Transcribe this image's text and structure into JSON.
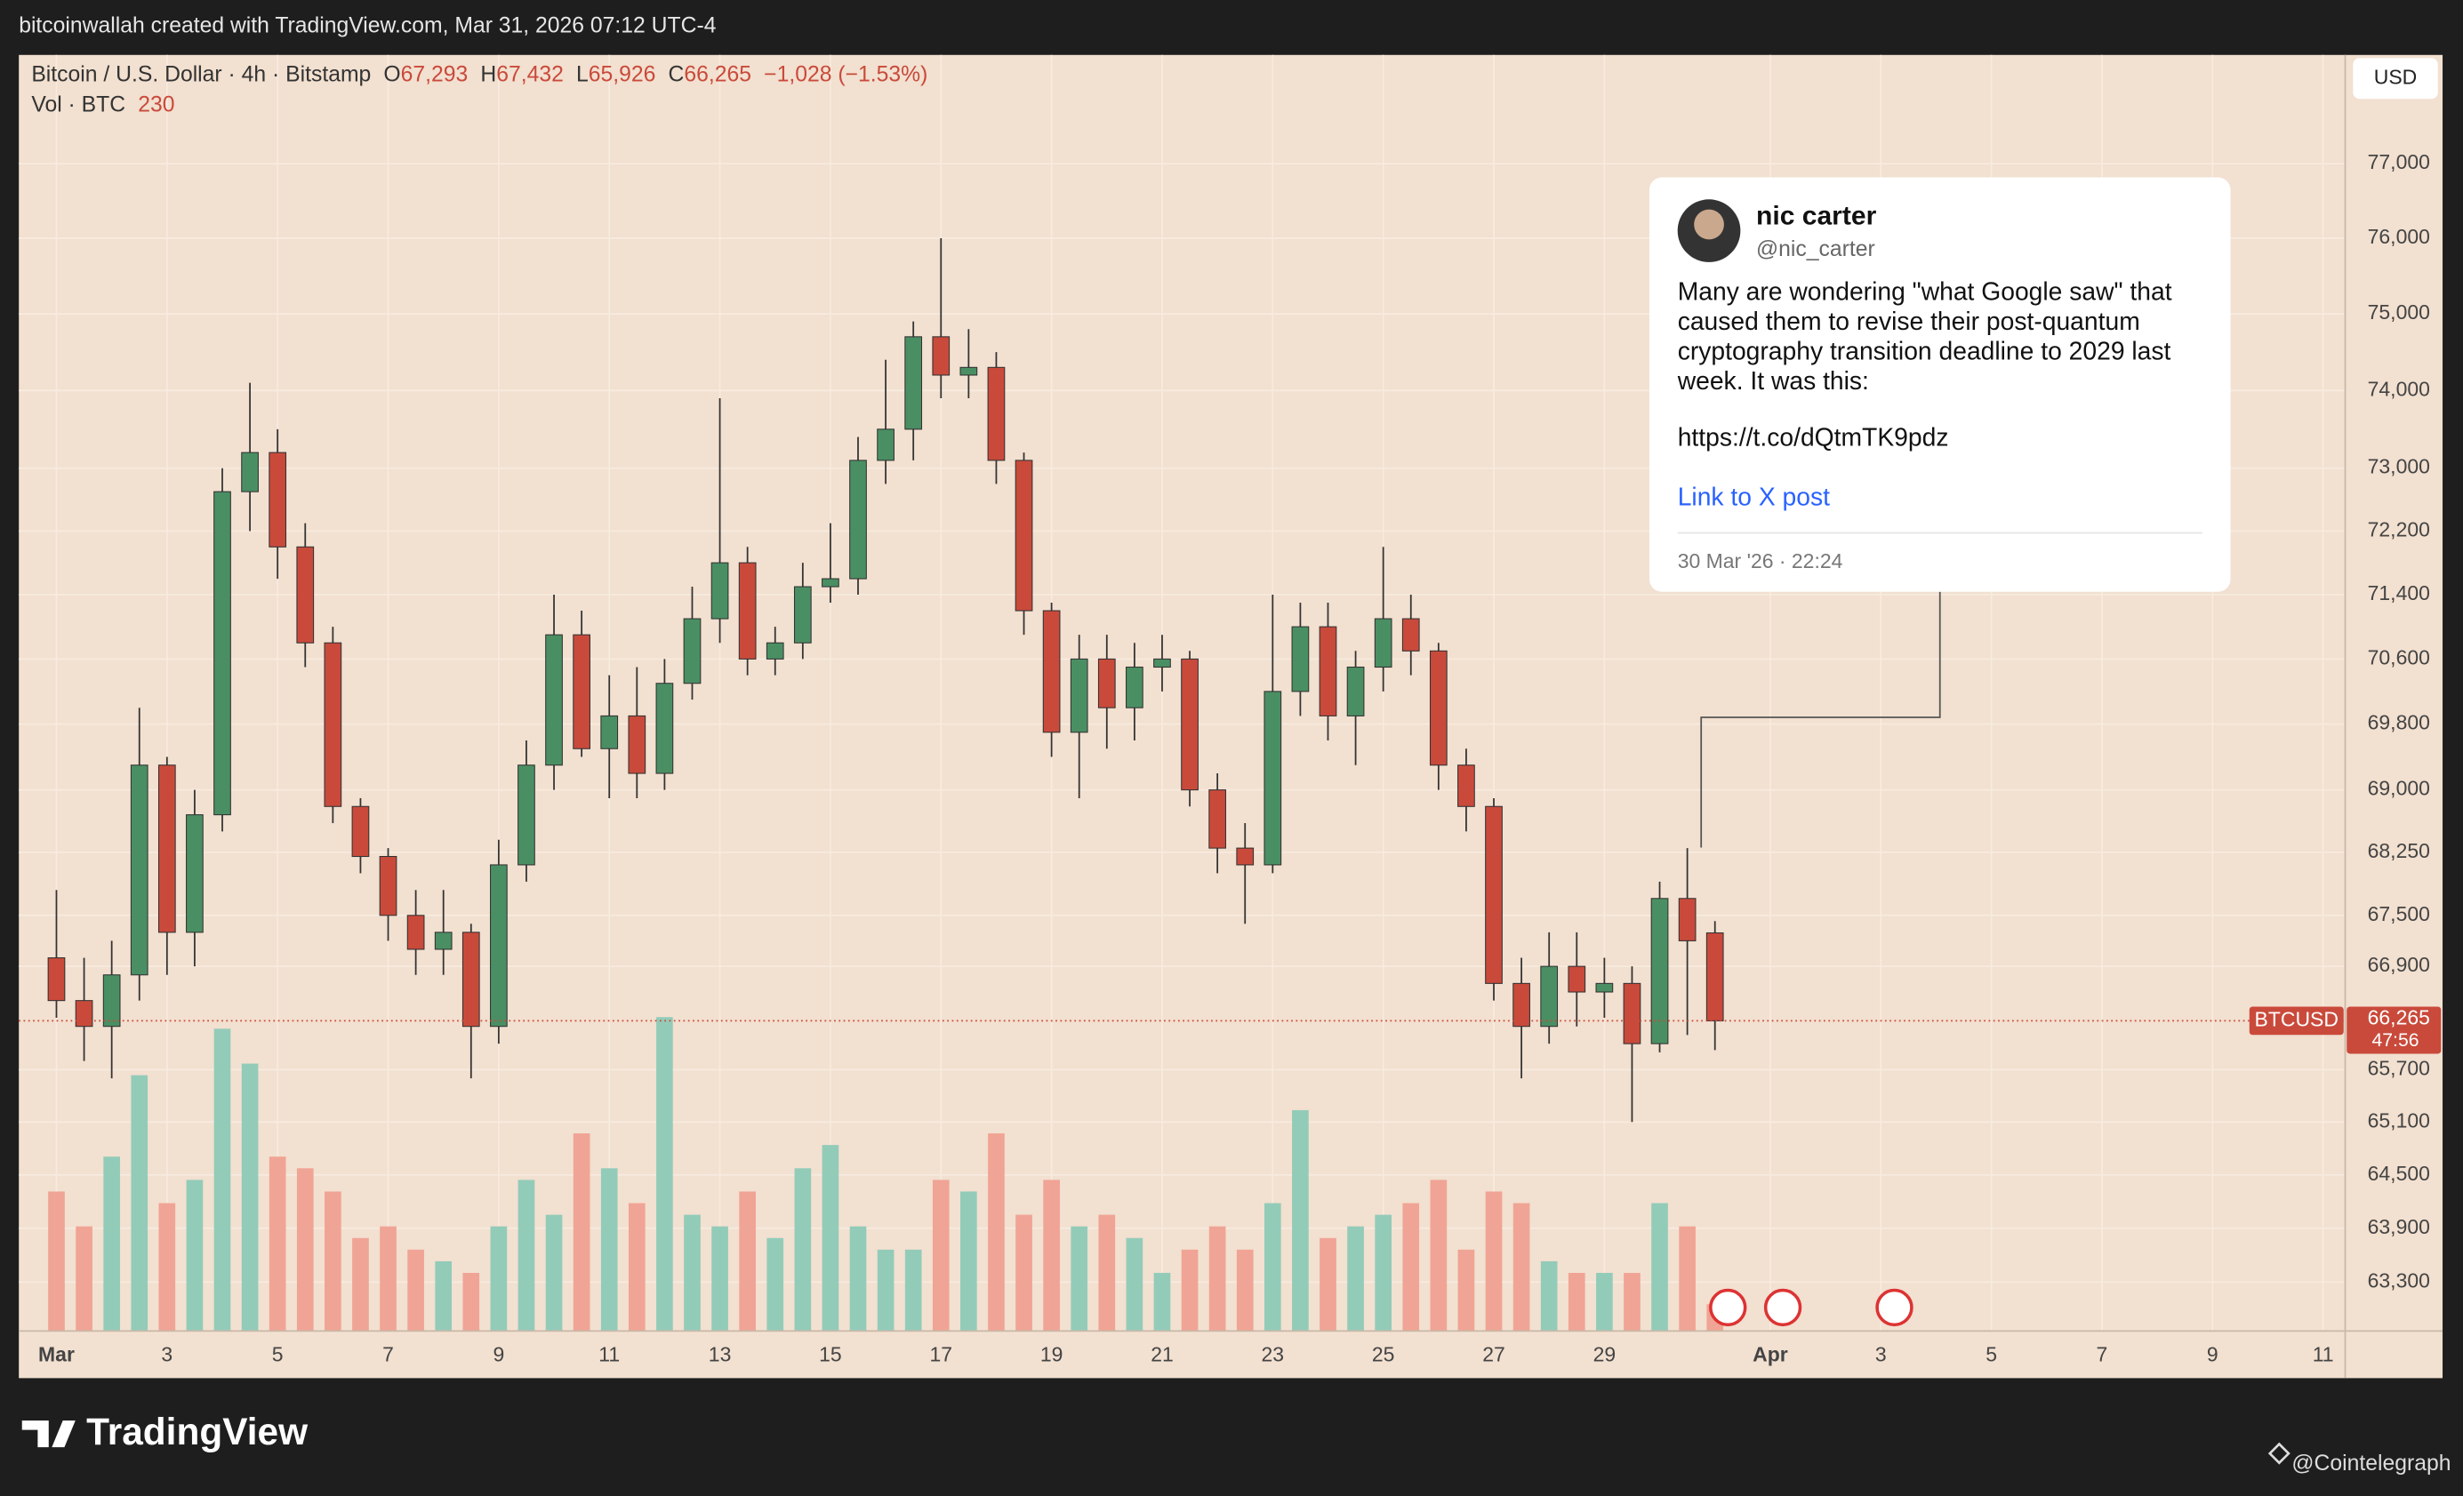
{
  "header": {
    "text": "bitcoinwallah created with TradingView.com, Mar 31, 2026 07:12 UTC-4"
  },
  "chart_data": {
    "type": "candlestick",
    "title": "Bitcoin / U.S. Dollar · 4h · Bitstamp",
    "legend": [
      {
        "key": "O",
        "value": 67293,
        "label": "67,293"
      },
      {
        "key": "H",
        "value": 67432,
        "label": "67,432"
      },
      {
        "key": "L",
        "value": 65926,
        "label": "65,926"
      },
      {
        "key": "C",
        "value": 66265,
        "label": "66,265"
      }
    ],
    "change": "−1,028 (−1.53%)",
    "volume_title": "Vol · BTC",
    "volume_last": 230,
    "currency": "USD",
    "up_color": "#4a8f63",
    "down_color": "#c94a3b",
    "volume_up_color": "#93cbb9",
    "volume_down_color": "#f0a495",
    "grid": true,
    "yscale": "log",
    "ylim": [
      62760,
      78480
    ],
    "yticks": [
      {
        "value": 77000,
        "label": "77,000"
      },
      {
        "value": 76000,
        "label": "76,000"
      },
      {
        "value": 75000,
        "label": "75,000"
      },
      {
        "value": 74000,
        "label": "74,000"
      },
      {
        "value": 73000,
        "label": "73,000"
      },
      {
        "value": 72200,
        "label": "72,200"
      },
      {
        "value": 71400,
        "label": "71,400"
      },
      {
        "value": 70600,
        "label": "70,600"
      },
      {
        "value": 69800,
        "label": "69,800"
      },
      {
        "value": 69000,
        "label": "69,000"
      },
      {
        "value": 68250,
        "label": "68,250"
      },
      {
        "value": 67500,
        "label": "67,500"
      },
      {
        "value": 66900,
        "label": "66,900"
      },
      {
        "value": 65700,
        "label": "65,700"
      },
      {
        "value": 65100,
        "label": "65,100"
      },
      {
        "value": 64500,
        "label": "64,500"
      },
      {
        "value": 63900,
        "label": "63,900"
      },
      {
        "value": 63300,
        "label": "63,300"
      }
    ],
    "xlim": [
      0.32,
      42.4
    ],
    "xticks": [
      {
        "value": 1,
        "label": "Mar"
      },
      3,
      5,
      7,
      9,
      11,
      13,
      15,
      17,
      19,
      21,
      23,
      25,
      27,
      29,
      {
        "value": 32,
        "label": "Apr"
      },
      {
        "value": 34,
        "label": "3"
      },
      {
        "value": 36,
        "label": "5"
      },
      {
        "value": 38,
        "label": "7"
      },
      {
        "value": 40,
        "label": "9"
      },
      {
        "value": 42,
        "label": "11"
      }
    ],
    "price_line": {
      "symbol": "BTCUSD",
      "value": 66265,
      "label": "66,265",
      "countdown": "47:56"
    },
    "candles": {
      "x": [
        1,
        1.5,
        2,
        2.5,
        3,
        3.5,
        4,
        4.5,
        5,
        5.5,
        6,
        6.5,
        7,
        7.5,
        8,
        8.5,
        9,
        9.5,
        10,
        10.5,
        11,
        11.5,
        12,
        12.5,
        13,
        13.5,
        14,
        14.5,
        15,
        15.5,
        16,
        16.5,
        17,
        17.5,
        18,
        18.5,
        19,
        19.5,
        20,
        20.5,
        21,
        21.5,
        22,
        22.5,
        23,
        23.5,
        24,
        24.5,
        25,
        25.5,
        26,
        26.5,
        27,
        27.5,
        28,
        28.5,
        29,
        29.5,
        30,
        30.5,
        31
      ],
      "open": [
        67000,
        66500,
        66200,
        66800,
        69300,
        67300,
        68700,
        72700,
        73200,
        72000,
        70800,
        68800,
        68200,
        67500,
        67100,
        67300,
        66200,
        68100,
        69300,
        70900,
        69500,
        69900,
        69200,
        70300,
        71100,
        71800,
        70600,
        70800,
        71500,
        71600,
        73100,
        73500,
        74700,
        74200,
        74300,
        73100,
        71200,
        69700,
        70600,
        70000,
        70500,
        70600,
        69000,
        68300,
        68100,
        70200,
        71000,
        69900,
        70500,
        71100,
        70700,
        69300,
        68800,
        66700,
        66200,
        66900,
        66600,
        66700,
        66000,
        67700,
        67293
      ],
      "high": [
        67800,
        67000,
        67200,
        70000,
        69400,
        69000,
        73000,
        74100,
        73500,
        72300,
        71000,
        68900,
        68300,
        67800,
        67800,
        67400,
        68400,
        69600,
        71400,
        71200,
        70400,
        70500,
        70600,
        71500,
        73900,
        72000,
        71000,
        71800,
        72300,
        73400,
        74400,
        74900,
        76000,
        74800,
        74500,
        73200,
        71300,
        70900,
        70900,
        70800,
        70900,
        70700,
        69200,
        68600,
        71400,
        71300,
        71300,
        70700,
        72000,
        71400,
        70800,
        69500,
        68900,
        67000,
        67300,
        67300,
        67000,
        66900,
        67900,
        68300,
        67432
      ],
      "low": [
        66300,
        65800,
        65600,
        66500,
        66800,
        66900,
        68500,
        72200,
        71600,
        70500,
        68600,
        68000,
        67200,
        66800,
        66800,
        65600,
        66000,
        67900,
        69000,
        69400,
        68900,
        68900,
        69000,
        70100,
        70800,
        70400,
        70400,
        70600,
        71300,
        71400,
        72800,
        73100,
        73900,
        73900,
        72800,
        70900,
        69400,
        68900,
        69500,
        69600,
        70200,
        68800,
        68000,
        67400,
        68000,
        69900,
        69600,
        69300,
        70200,
        70400,
        69000,
        68500,
        66500,
        65600,
        66000,
        66200,
        66300,
        65100,
        65900,
        66100,
        65926
      ],
      "close": [
        66500,
        66200,
        66800,
        69300,
        67300,
        68700,
        72700,
        73200,
        72000,
        70800,
        68800,
        68200,
        67500,
        67100,
        67300,
        66200,
        68100,
        69300,
        70900,
        69500,
        69900,
        69200,
        70300,
        71100,
        71800,
        70600,
        70800,
        71500,
        71600,
        73100,
        73500,
        74700,
        74200,
        74300,
        73100,
        71200,
        69700,
        70600,
        70000,
        70500,
        70600,
        69000,
        68300,
        68100,
        70200,
        71000,
        69900,
        70500,
        71100,
        70700,
        69300,
        68800,
        66700,
        66200,
        66900,
        66600,
        66700,
        66000,
        67700,
        67200,
        66265
      ],
      "volume": [
        1200,
        900,
        1500,
        2200,
        1100,
        1300,
        2600,
        2300,
        1500,
        1400,
        1200,
        800,
        900,
        700,
        600,
        500,
        900,
        1300,
        1000,
        1700,
        1400,
        1100,
        2700,
        1000,
        900,
        1200,
        800,
        1400,
        1600,
        900,
        700,
        700,
        1300,
        1200,
        1700,
        1000,
        1300,
        900,
        1000,
        800,
        500,
        700,
        900,
        700,
        1100,
        1900,
        800,
        900,
        1000,
        1100,
        1300,
        700,
        1200,
        1100,
        600,
        500,
        500,
        500,
        1100,
        900,
        230
      ]
    }
  },
  "tweet": {
    "name": "nic carter",
    "handle": "@nic_carter",
    "text": "Many are wondering \"what Google saw\" that caused them to revise their post-quantum cryptography transition deadline to 2029 last week. It was this:",
    "url": "https://t.co/dQtmTK9pdz",
    "link_text": "Link to X post",
    "date": "30 Mar '26 · 22:24"
  },
  "footer": {
    "brand": "TradingView",
    "credit": "@Cointelegraph"
  }
}
